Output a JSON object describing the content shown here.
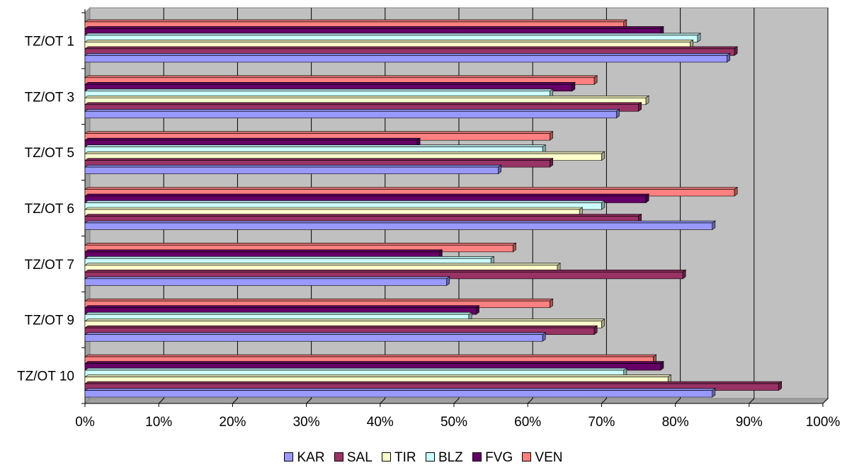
{
  "chart_data": {
    "type": "bar",
    "orientation": "horizontal",
    "style": "3d-clustered",
    "categories": [
      "TZ/OT 1",
      "TZ/OT 3",
      "TZ/OT 5",
      "TZ/OT 6",
      "TZ/OT 7",
      "TZ/OT 9",
      "TZ/OT 10"
    ],
    "series": [
      {
        "name": "KAR",
        "color": "#9999ff",
        "values": [
          87,
          72,
          56,
          85,
          49,
          62,
          85
        ]
      },
      {
        "name": "SAL",
        "color": "#993366",
        "values": [
          88,
          75,
          63,
          75,
          81,
          69,
          94
        ]
      },
      {
        "name": "TIR",
        "color": "#ffffcc",
        "values": [
          82,
          76,
          70,
          67,
          64,
          70,
          79
        ]
      },
      {
        "name": "BLZ",
        "color": "#ccffff",
        "values": [
          83,
          63,
          62,
          70,
          55,
          52,
          73
        ]
      },
      {
        "name": "FVG",
        "color": "#660066",
        "values": [
          78,
          66,
          45,
          76,
          48,
          53,
          78
        ]
      },
      {
        "name": "VEN",
        "color": "#ff8080",
        "values": [
          73,
          69,
          63,
          88,
          58,
          63,
          77
        ]
      }
    ],
    "xlim": [
      0,
      100
    ],
    "x_ticks": [
      "0%",
      "10%",
      "20%",
      "30%",
      "40%",
      "50%",
      "60%",
      "70%",
      "80%",
      "90%",
      "100%"
    ],
    "wall_color": "#c0c0c0",
    "grid": true,
    "legend": "bottom"
  }
}
